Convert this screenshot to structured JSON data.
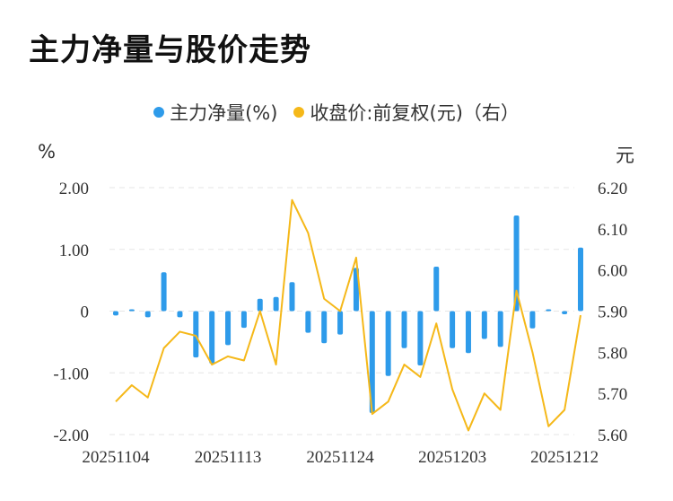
{
  "title": "主力净量与股价走势",
  "legend": [
    {
      "label": "主力净量(%)",
      "color": "#2e9bea"
    },
    {
      "label": "收盘价:前复权(元)（右）",
      "color": "#f5b819"
    }
  ],
  "units": {
    "left": "%",
    "right": "元"
  },
  "chart_data": {
    "type": "bar+line",
    "title": "主力净量与股价走势",
    "x_tick_labels": [
      "20251104",
      "20251113",
      "20251124",
      "20251203",
      "20251212"
    ],
    "x_tick_index": [
      0,
      7,
      14,
      21,
      28
    ],
    "y_left": {
      "ylim": [
        -2.0,
        2.0
      ],
      "ticks": [
        2.0,
        1.0,
        0,
        -1.0,
        -2.0
      ],
      "tick_labels": [
        "2.00",
        "1.00",
        "0",
        "-1.00",
        "-2.00"
      ],
      "unit": "%"
    },
    "y_right": {
      "ylim": [
        5.6,
        6.2
      ],
      "ticks": [
        6.2,
        6.1,
        6.0,
        5.9,
        5.8,
        5.7,
        5.6
      ],
      "tick_labels": [
        "6.20",
        "6.10",
        "6.00",
        "5.90",
        "5.80",
        "5.70",
        "5.60"
      ],
      "unit": "元"
    },
    "grid": true,
    "legend_position": "top-center",
    "series": [
      {
        "name": "主力净量(%)",
        "type": "bar",
        "axis": "left",
        "color": "#2e9bea",
        "values": [
          -0.07,
          0.03,
          -0.1,
          0.63,
          -0.1,
          -0.75,
          -0.85,
          -0.55,
          -0.27,
          0.2,
          0.23,
          0.47,
          -0.35,
          -0.52,
          -0.38,
          0.7,
          -1.65,
          -1.05,
          -0.6,
          -0.88,
          0.72,
          -0.6,
          -0.68,
          -0.45,
          -0.58,
          1.55,
          -0.28,
          0.03,
          -0.05,
          1.03
        ]
      },
      {
        "name": "收盘价:前复权(元)（右）",
        "type": "line",
        "axis": "right",
        "color": "#f5b819",
        "values": [
          5.68,
          5.72,
          5.69,
          5.81,
          5.85,
          5.84,
          5.77,
          5.79,
          5.78,
          5.9,
          5.77,
          6.17,
          6.09,
          5.93,
          5.9,
          6.03,
          5.65,
          5.68,
          5.77,
          5.74,
          5.87,
          5.71,
          5.61,
          5.7,
          5.66,
          5.95,
          5.8,
          5.62,
          5.66,
          5.89
        ]
      }
    ]
  }
}
